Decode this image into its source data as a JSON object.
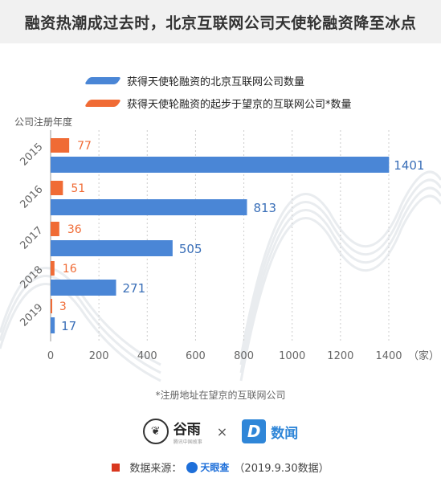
{
  "title": "融资热潮成过去时，北京互联网公司天使轮融资降至冰点",
  "y_axis_title": "公司注册年度",
  "x_unit": "（家）",
  "footnote": "*注册地址在望京的互联网公司",
  "brands": {
    "guyu": "谷雨",
    "guyu_sub": "腾讯中国故事",
    "times": "×",
    "shuwen": "数闻",
    "shuwen_letter": "D"
  },
  "source": {
    "label": "数据来源：",
    "platform": "天眼查",
    "date": "（2019.9.30数据）"
  },
  "colors": {
    "blue": "#4a86d6",
    "orange": "#f06b35",
    "grid": "#cccccc",
    "axis": "#999999",
    "title_bg": "#f1f1f1"
  },
  "chart_data": {
    "type": "bar",
    "orientation": "horizontal",
    "categories": [
      "2015",
      "2016",
      "2017",
      "2018",
      "2019"
    ],
    "series": [
      {
        "name": "获得天使轮融资的北京互联网公司数量",
        "color": "#4a86d6",
        "values": [
          1401,
          813,
          505,
          271,
          17
        ]
      },
      {
        "name": "获得天使轮融资的起步于望京的互联网公司*数量",
        "color": "#f06b35",
        "values": [
          77,
          51,
          36,
          16,
          3
        ]
      }
    ],
    "x_ticks": [
      0,
      200,
      400,
      600,
      800,
      1000,
      1200,
      1400
    ],
    "xlim": [
      0,
      1400
    ],
    "grid": "vertical dashed",
    "legend": "top"
  }
}
